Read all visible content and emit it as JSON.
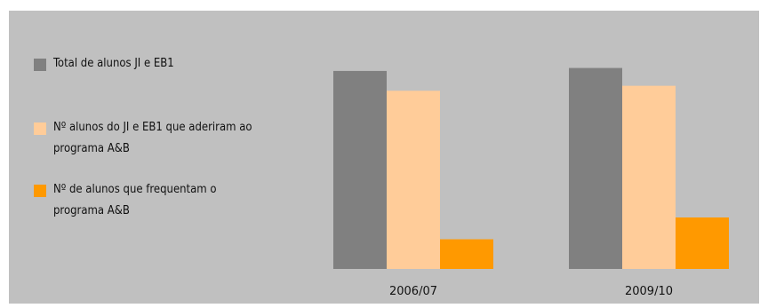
{
  "chart_data": {
    "type": "bar",
    "categories": [
      "2006/07",
      "2009/10"
    ],
    "series": [
      {
        "name": "Total de alunos JI e EB1",
        "color": "#808080",
        "values": [
          1000,
          1015
        ]
      },
      {
        "name": "Nº alunos do JI  e EB1 que aderiram ao programa A&B",
        "color": "#ffcc99",
        "values": [
          900,
          925
        ]
      },
      {
        "name": "Nº de alunos que frequentam o programa A&B",
        "color": "#ff9900",
        "values": [
          150,
          260
        ]
      }
    ],
    "ylim": [
      0,
      1300
    ],
    "grid": false,
    "legend_position": "left"
  }
}
